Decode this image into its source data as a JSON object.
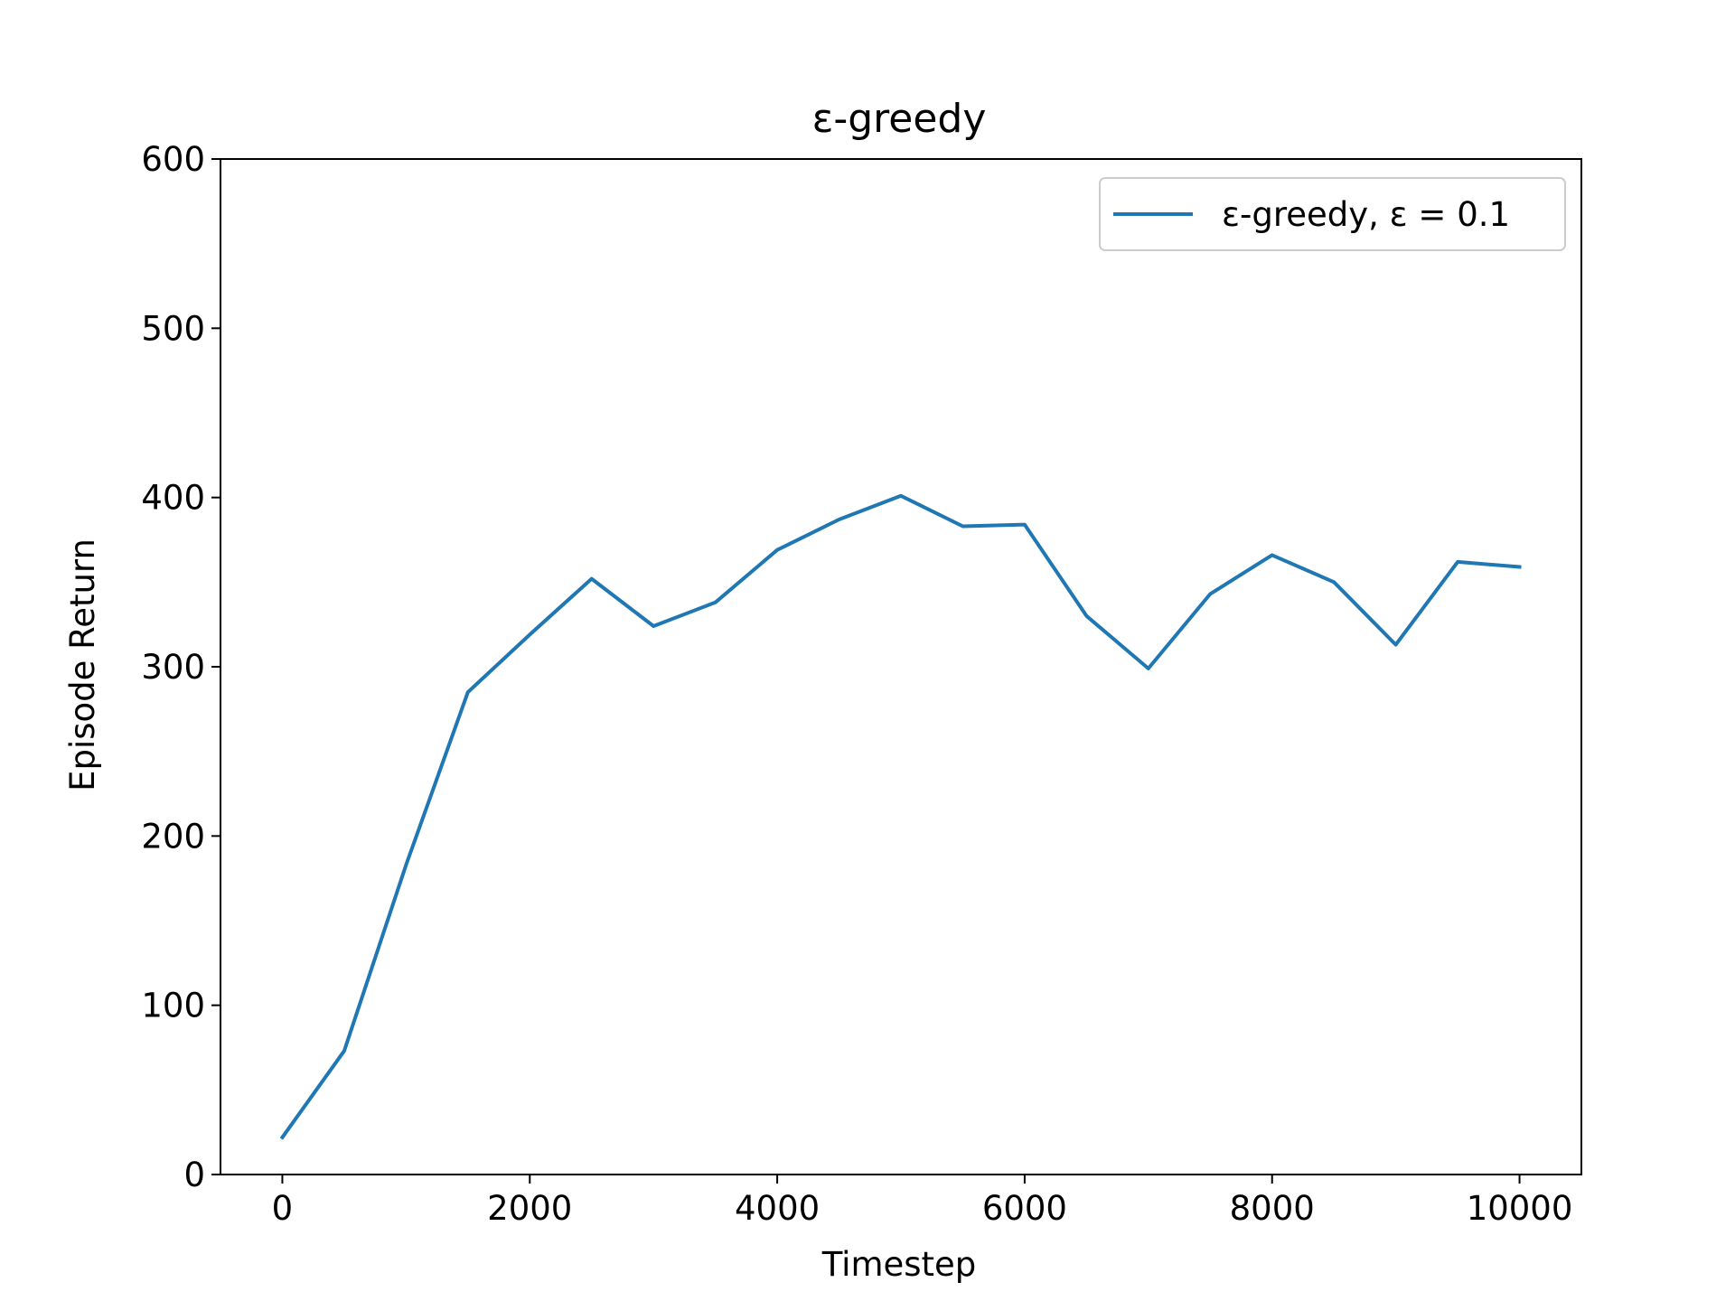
{
  "chart_data": {
    "type": "line",
    "title": "ε-greedy",
    "xlabel": "Timestep",
    "ylabel": "Episode Return",
    "xlim": [
      -500,
      10500
    ],
    "ylim": [
      0,
      600
    ],
    "xticks": [
      0,
      2000,
      4000,
      6000,
      8000,
      10000
    ],
    "yticks": [
      0,
      100,
      200,
      300,
      400,
      500,
      600
    ],
    "xtick_labels": [
      "0",
      "2000",
      "4000",
      "6000",
      "8000",
      "10000"
    ],
    "ytick_labels": [
      "0",
      "100",
      "200",
      "300",
      "400",
      "500",
      "600"
    ],
    "grid": false,
    "legend": {
      "position": "top-right"
    },
    "series": [
      {
        "name": "ε-greedy, ε = 0.1",
        "color": "#1f77b4",
        "x": [
          0,
          500,
          1000,
          1500,
          2000,
          2500,
          3000,
          3500,
          4000,
          4500,
          5000,
          5500,
          6000,
          6500,
          7000,
          7500,
          8000,
          8500,
          9000,
          9500,
          10000
        ],
        "y": [
          22,
          73,
          183,
          285,
          319,
          352,
          324,
          338,
          369,
          387,
          401,
          383,
          384,
          330,
          299,
          343,
          366,
          350,
          313,
          362,
          359
        ]
      }
    ]
  }
}
